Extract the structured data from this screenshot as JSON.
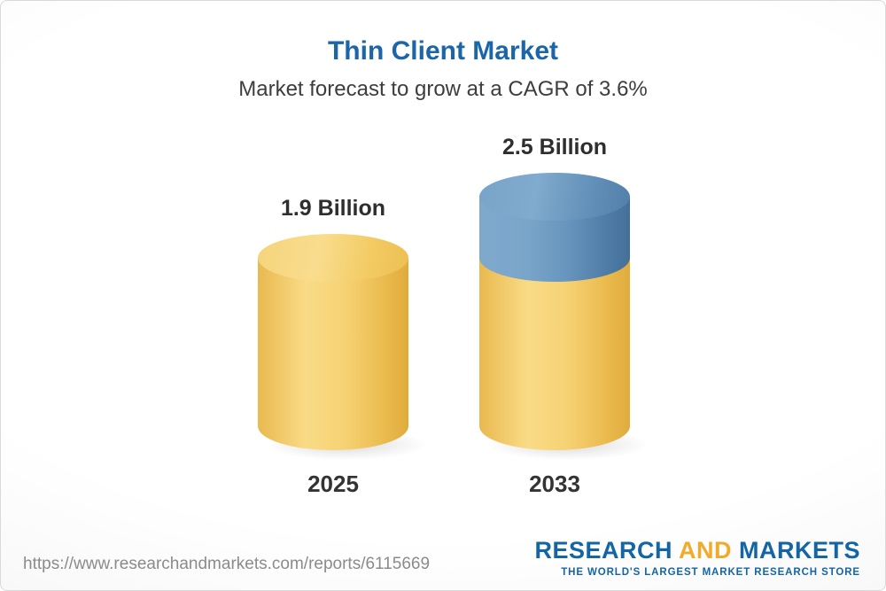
{
  "chart_data": {
    "type": "bar",
    "title": "Thin Client Market",
    "subtitle": "Market forecast to grow at a CAGR of 3.6%",
    "categories": [
      "2025",
      "2033"
    ],
    "values": [
      1.9,
      2.5
    ],
    "value_labels": [
      "1.9 Billion",
      "2.5 Billion"
    ],
    "unit": "Billion",
    "cagr": "3.6%",
    "ylim": [
      0,
      2.5
    ],
    "legend": "none",
    "grid": "off",
    "colors": {
      "bar_base": "#F5CF6E",
      "bar_base_dark": "#E0AB3C",
      "increment_segment": "#6795BD",
      "increment_segment_dark": "#446F99",
      "title_blue": "#1A66A8"
    }
  },
  "footer": {
    "url": "https://www.researchandmarkets.com/reports/6115669",
    "logo": {
      "research": "RESEARCH",
      "and": "AND",
      "markets": "MARKETS",
      "tagline": "THE WORLD'S LARGEST MARKET RESEARCH STORE",
      "brand_blue": "#1465A6",
      "brand_yellow": "#F0AB2B"
    }
  }
}
